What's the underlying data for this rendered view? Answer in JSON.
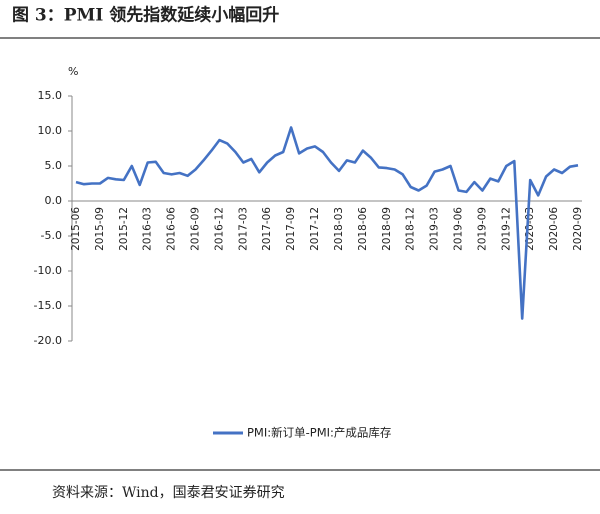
{
  "chart_data": {
    "type": "line",
    "title": "图 3：PMI 领先指数延续小幅回升",
    "ylabel": "%",
    "source": "资料来源：Wind，国泰君安证券研究",
    "categories": [
      "2015-06",
      null,
      null,
      "2015-09",
      null,
      null,
      "2015-12",
      null,
      null,
      "2016-03",
      null,
      null,
      "2016-06",
      null,
      null,
      "2016-09",
      null,
      null,
      "2016-12",
      null,
      null,
      "2017-03",
      null,
      null,
      "2017-06",
      null,
      null,
      "2017-09",
      null,
      null,
      "2017-12",
      null,
      null,
      "2018-03",
      null,
      null,
      "2018-06",
      null,
      null,
      "2018-09",
      null,
      null,
      "2018-12",
      null,
      null,
      "2019-03",
      null,
      null,
      "2019-06",
      null,
      null,
      "2019-09",
      null,
      null,
      "2019-12",
      null,
      null,
      "2020-03",
      null,
      null,
      "2020-06",
      null,
      null,
      "2020-09"
    ],
    "series": [
      {
        "name": "PMI:新订单-PMI:产成品库存",
        "color": "#4472c4",
        "values": [
          2.7,
          2.4,
          2.5,
          2.5,
          3.3,
          3.1,
          3.0,
          5.0,
          2.3,
          5.5,
          5.6,
          4.0,
          3.8,
          4.0,
          3.6,
          4.5,
          5.8,
          7.2,
          8.7,
          8.2,
          7.0,
          5.5,
          6.0,
          4.1,
          5.5,
          6.5,
          7.0,
          10.5,
          6.8,
          7.5,
          7.8,
          7.0,
          5.5,
          4.3,
          5.8,
          5.5,
          7.2,
          6.2,
          4.8,
          4.7,
          4.5,
          3.8,
          2.0,
          1.5,
          2.2,
          4.2,
          4.5,
          5.0,
          1.5,
          1.3,
          2.7,
          1.5,
          3.2,
          2.8,
          5.0,
          5.7,
          -16.8,
          3.0,
          0.8,
          3.5,
          4.5,
          4.0,
          4.9,
          5.1
        ]
      }
    ],
    "ylim": [
      -20,
      15
    ],
    "yticks": [
      {
        "value": 15,
        "label": "15.0"
      },
      {
        "value": 10,
        "label": "10.0"
      },
      {
        "value": 5,
        "label": "5.0"
      },
      {
        "value": 0,
        "label": "0.0"
      },
      {
        "value": -5,
        "label": "-5.0"
      },
      {
        "value": -10,
        "label": "-10.0"
      },
      {
        "value": -15,
        "label": "-15.0"
      },
      {
        "value": -20,
        "label": "-20.0"
      }
    ],
    "grid": false,
    "legend": "bottom"
  }
}
